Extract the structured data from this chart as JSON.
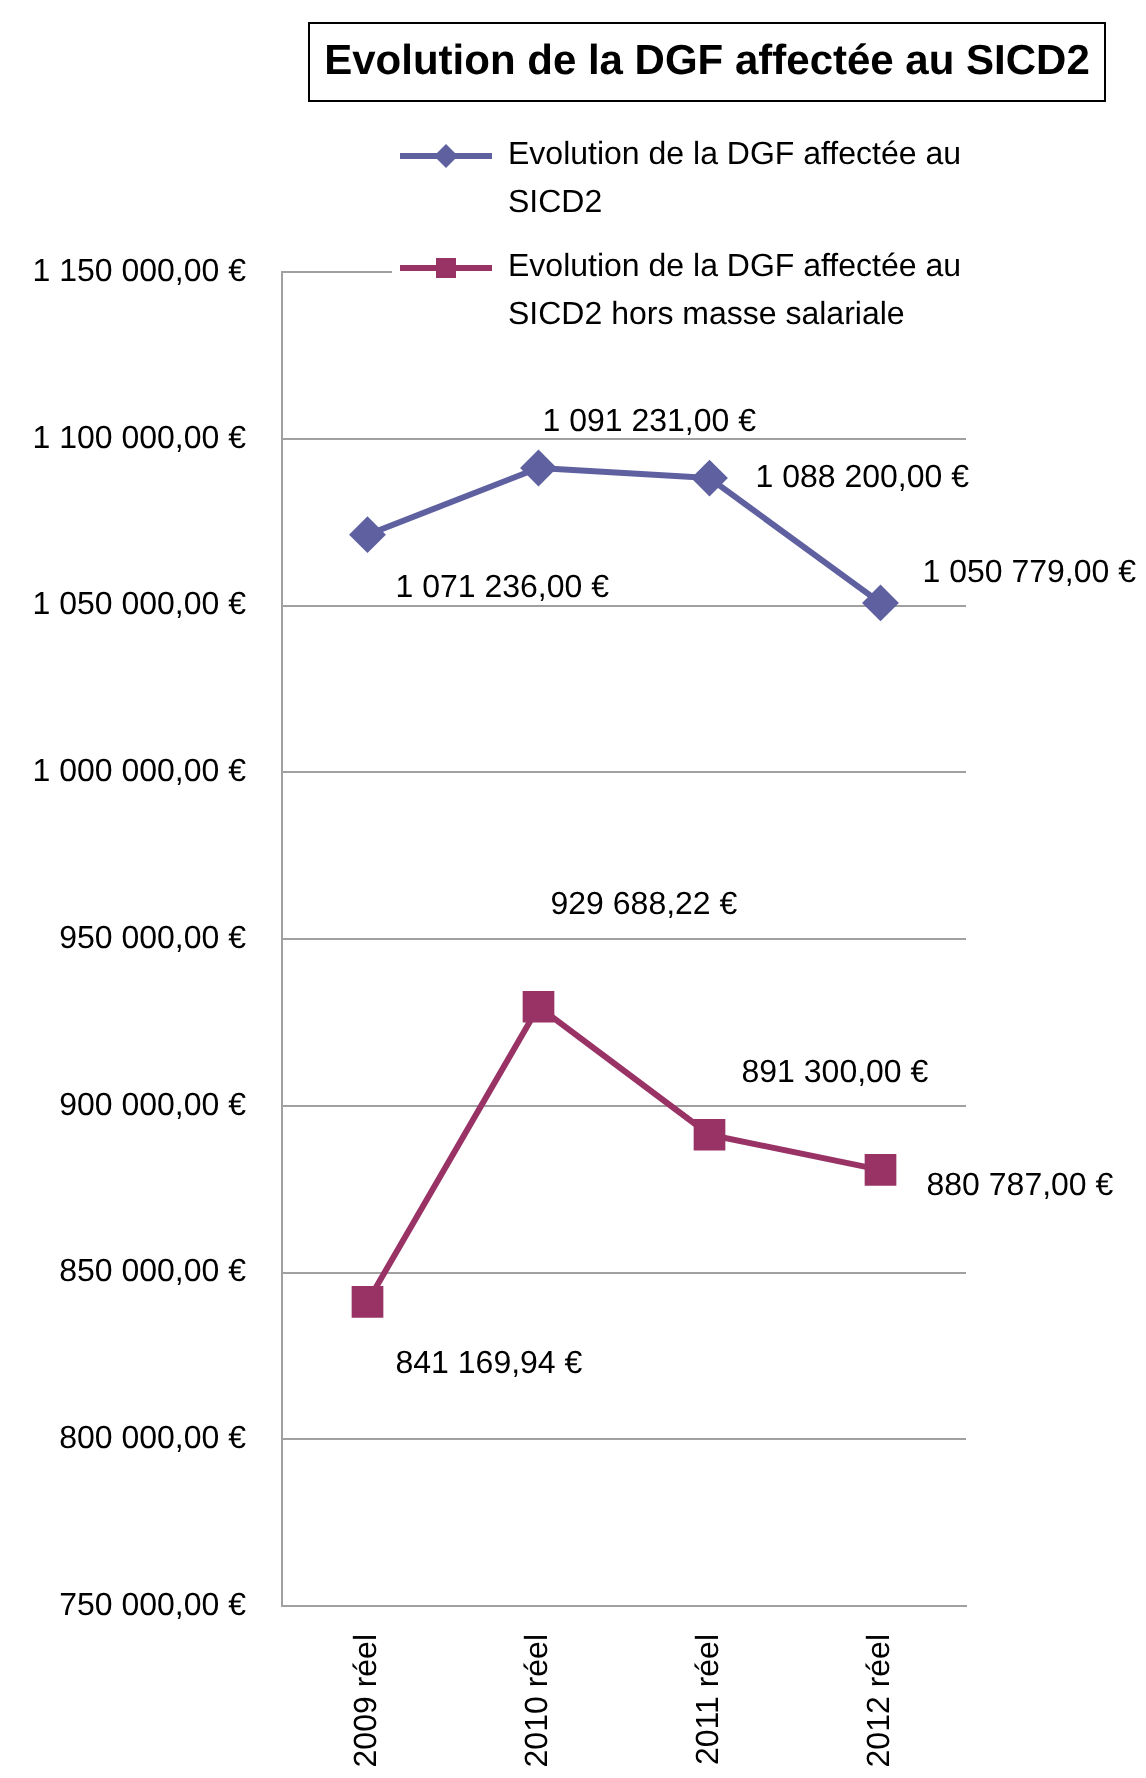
{
  "chart_data": {
    "type": "line",
    "title": "Evolution de la DGF affectée au SICD2",
    "categories": [
      "2009 réel",
      "2010 réel",
      "2011 réel",
      "2012 réel"
    ],
    "series": [
      {
        "name": "Evolution de la DGF affectée au SICD2",
        "color": "#5f60a0",
        "marker": "diamond",
        "values": [
          1071236,
          1091231,
          1088200,
          1050779
        ],
        "value_labels": [
          "1 071 236,00 €",
          "1 091 231,00 €",
          "1 088 200,00 €",
          "1 050 779,00 €"
        ]
      },
      {
        "name": "Evolution de la DGF affectée au SICD2 hors masse salariale",
        "color": "#993366",
        "marker": "square",
        "values": [
          841169.94,
          929688.22,
          891300,
          880787
        ],
        "value_labels": [
          "841 169,94 €",
          "929 688,22 €",
          "891 300,00 €",
          "880 787,00 €"
        ]
      }
    ],
    "ylim": [
      750000,
      1150000
    ],
    "yticks": [
      {
        "value": 750000,
        "label": "750 000,00 €"
      },
      {
        "value": 800000,
        "label": "800 000,00 €"
      },
      {
        "value": 850000,
        "label": "850 000,00 €"
      },
      {
        "value": 900000,
        "label": "900 000,00 €"
      },
      {
        "value": 950000,
        "label": "950 000,00 €"
      },
      {
        "value": 1000000,
        "label": "1 000 000,00 €"
      },
      {
        "value": 1050000,
        "label": "1 050 000,00 €"
      },
      {
        "value": 1100000,
        "label": "1 100 000,00 €"
      },
      {
        "value": 1150000,
        "label": "1 150 000,00 €"
      }
    ],
    "grid": "y",
    "legend": "top right",
    "line_style": "solid"
  }
}
